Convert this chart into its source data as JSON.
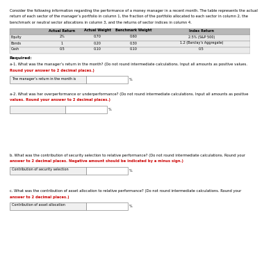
{
  "intro_text": "Consider the following information regarding the performance of a money manager in a recent month. The table represents the actual\nreturn of each sector of the manager’s portfolio in column 1, the fraction of the portfolio allocated to each sector in column 2, the\nbenchmark or neutral sector allocations in column 3, and the returns of sector indices in column 4.",
  "table_headers": [
    "",
    "Actual Return",
    "Actual Weight",
    "Benchmark Weight",
    "Index Return"
  ],
  "table_rows": [
    [
      "Equity",
      "2%",
      "0.70",
      "0.60",
      "2.5% (S&P 500)"
    ],
    [
      "Bonds",
      "1",
      "0.20",
      "0.30",
      "1.2 (Barclay’s Aggregate)"
    ],
    [
      "Cash",
      "0.5",
      "0.10",
      "0.10",
      "0.5"
    ]
  ],
  "required_label": "Required:",
  "q_a1_line1": "a-1. What was the manager’s return in the month? (Do not round intermediate calculations. Input all amounts as positive values.",
  "q_a1_line2": "Round your answer to 2 decimal places.)",
  "q_a1_field_label": "The manager’s return in the month is",
  "q_a1_unit": "%",
  "q_a2_line1": "a-2. What was her overperformance or underperformance? (Do not round intermediate calculations. Input all amounts as positive",
  "q_a2_line2": "values. Round your answer to 2 decimal places.)",
  "q_a2_unit": "%",
  "q_b_line1": "b. What was the contribution of security selection to relative performance? (Do not round intermediate calculations. Round your",
  "q_b_line2": "answer to 2 decimal places. Negative amount should be indicated by a minus sign.)",
  "q_b_field_label": "Contribution of security selection",
  "q_b_unit": "%",
  "q_c_line1": "c. What was the contribution of asset allocation to relative performance? (Do not round intermediate calculations. Round your",
  "q_c_line2": "answer to 2 decimal places.)",
  "q_c_field_label": "Contribution of asset allocation",
  "q_c_unit": "%",
  "bg_color": "#ffffff",
  "table_header_bg": "#b8b8b8",
  "table_row_bg": "#ebebeb",
  "text_color": "#000000",
  "red_color": "#cc0000",
  "font_size_intro": 3.8,
  "font_size_table": 3.5,
  "font_size_required": 4.2,
  "font_size_q": 3.8,
  "font_size_field": 3.5
}
